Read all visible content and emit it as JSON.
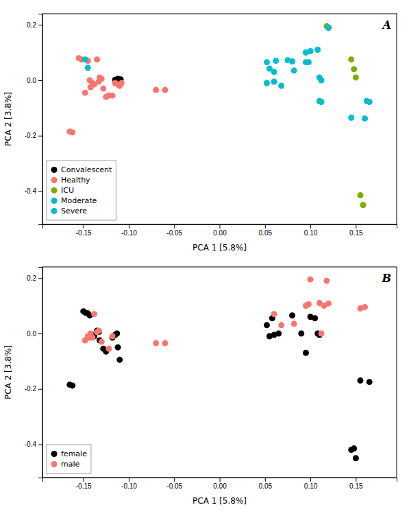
{
  "chart_data": [
    {
      "type": "scatter",
      "annotation": "A",
      "xlabel": "PCA 1 [5.8%]",
      "ylabel": "PCA 2 [3.8%]",
      "xlim": [
        -0.195,
        0.195
      ],
      "ylim": [
        -0.52,
        0.24
      ],
      "xticks": [
        -0.15,
        {
          "value": -0.1,
          "label": "-0.10"
        },
        -0.05,
        {
          "value": 0.0,
          "label": "0.00"
        },
        0.05,
        {
          "value": 0.1,
          "label": "0.10"
        },
        0.15
      ],
      "yticks": [
        -0.4,
        -0.2,
        {
          "value": 0.0,
          "label": "0.0"
        },
        0.2
      ],
      "legend": "lower left",
      "series": [
        {
          "name": "Convalescent",
          "color": "#000000",
          "x": [
            -0.115,
            -0.113,
            -0.112,
            -0.11,
            -0.109
          ],
          "values": [
            0.002,
            -0.002,
            0.005,
            0.0,
            0.003
          ]
        },
        {
          "name": "Healthy",
          "color": "#F8766D",
          "x": [
            -0.165,
            -0.162,
            -0.155,
            -0.152,
            -0.148,
            -0.145,
            -0.143,
            -0.142,
            -0.14,
            -0.138,
            -0.135,
            -0.133,
            -0.132,
            -0.13,
            -0.128,
            -0.125,
            -0.122,
            -0.118,
            -0.115,
            -0.112,
            -0.11,
            -0.108,
            -0.07,
            -0.06
          ],
          "values": [
            -0.185,
            -0.188,
            0.08,
            0.075,
            -0.045,
            0.07,
            0.0,
            -0.025,
            -0.01,
            -0.015,
            0.075,
            -0.005,
            0.01,
            0.005,
            -0.03,
            -0.06,
            -0.055,
            -0.055,
            -0.01,
            -0.015,
            -0.02,
            -0.01,
            -0.035,
            -0.035
          ]
        },
        {
          "name": "ICU",
          "color": "#7CAE00",
          "x": [
            0.118,
            0.12,
            0.145,
            0.148,
            0.15,
            0.155,
            0.158
          ],
          "values": [
            0.195,
            0.19,
            0.075,
            0.04,
            0.01,
            -0.415,
            -0.45
          ]
        },
        {
          "name": "Moderate",
          "color": "#00BFC4",
          "x": [
            -0.148,
            -0.145,
            0.052,
            0.06,
            0.068,
            0.095,
            0.098,
            0.11,
            0.112
          ],
          "values": [
            0.075,
            0.045,
            -0.01,
            0.03,
            -0.02,
            0.065,
            0.065,
            -0.075,
            -0.078
          ]
        },
        {
          "name": "Severe",
          "color": "#00BCD4",
          "x": [
            0.12,
            0.052,
            0.055,
            0.06,
            0.062,
            0.075,
            0.08,
            0.082,
            0.095,
            0.1,
            0.108,
            0.11,
            0.112,
            0.145,
            0.16,
            0.162,
            0.165
          ],
          "values": [
            0.19,
            0.065,
            0.042,
            -0.005,
            0.07,
            0.072,
            0.068,
            0.035,
            0.1,
            0.105,
            0.11,
            0.01,
            0.0,
            -0.135,
            -0.138,
            -0.075,
            -0.078
          ]
        }
      ]
    },
    {
      "type": "scatter",
      "annotation": "B",
      "xlabel": "PCA 1 [5.8%]",
      "ylabel": "PCA 2 [3.8%]",
      "xlim": [
        -0.195,
        0.195
      ],
      "ylim": [
        -0.52,
        0.24
      ],
      "xticks": [
        -0.15,
        {
          "value": -0.1,
          "label": "-0.10"
        },
        -0.05,
        {
          "value": 0.0,
          "label": "0.00"
        },
        0.05,
        {
          "value": 0.1,
          "label": "0.10"
        },
        0.15
      ],
      "yticks": [
        -0.4,
        -0.2,
        {
          "value": 0.0,
          "label": "0.0"
        },
        0.2
      ],
      "legend": "lower left",
      "series": [
        {
          "name": "female",
          "color": "#000000",
          "x": [
            -0.165,
            -0.162,
            -0.15,
            -0.148,
            -0.145,
            -0.143,
            -0.14,
            -0.138,
            -0.135,
            -0.133,
            -0.132,
            -0.128,
            -0.125,
            -0.118,
            -0.115,
            -0.113,
            -0.112,
            -0.11,
            0.052,
            0.055,
            0.058,
            0.06,
            0.065,
            0.08,
            0.09,
            0.095,
            0.1,
            0.105,
            0.108,
            0.11,
            0.145,
            0.148,
            0.15,
            0.155,
            0.165
          ],
          "values": [
            -0.185,
            -0.188,
            0.08,
            0.075,
            0.072,
            0.065,
            -0.005,
            -0.01,
            0.01,
            0.005,
            -0.025,
            -0.055,
            -0.065,
            -0.015,
            -0.005,
            0.0,
            -0.05,
            -0.095,
            0.03,
            -0.01,
            0.055,
            -0.005,
            0.0,
            0.065,
            0.0,
            -0.07,
            0.06,
            0.055,
            -0.0,
            -0.005,
            -0.42,
            -0.415,
            -0.45,
            -0.17,
            -0.175
          ]
        },
        {
          "name": "male",
          "color": "#F8766D",
          "x": [
            -0.148,
            -0.145,
            -0.143,
            -0.142,
            -0.14,
            -0.138,
            -0.135,
            -0.133,
            -0.13,
            -0.122,
            -0.118,
            -0.07,
            -0.06,
            0.06,
            0.068,
            0.082,
            0.095,
            0.098,
            0.1,
            0.11,
            0.112,
            0.115,
            0.118,
            0.12,
            0.155,
            0.16
          ],
          "values": [
            -0.025,
            -0.01,
            -0.015,
            0.0,
            -0.015,
            0.07,
            0.005,
            0.01,
            -0.03,
            -0.055,
            -0.01,
            -0.035,
            -0.035,
            0.07,
            0.03,
            0.035,
            0.1,
            0.105,
            0.195,
            0.11,
            0.0,
            0.1,
            0.19,
            0.108,
            0.09,
            0.095
          ]
        }
      ]
    }
  ]
}
